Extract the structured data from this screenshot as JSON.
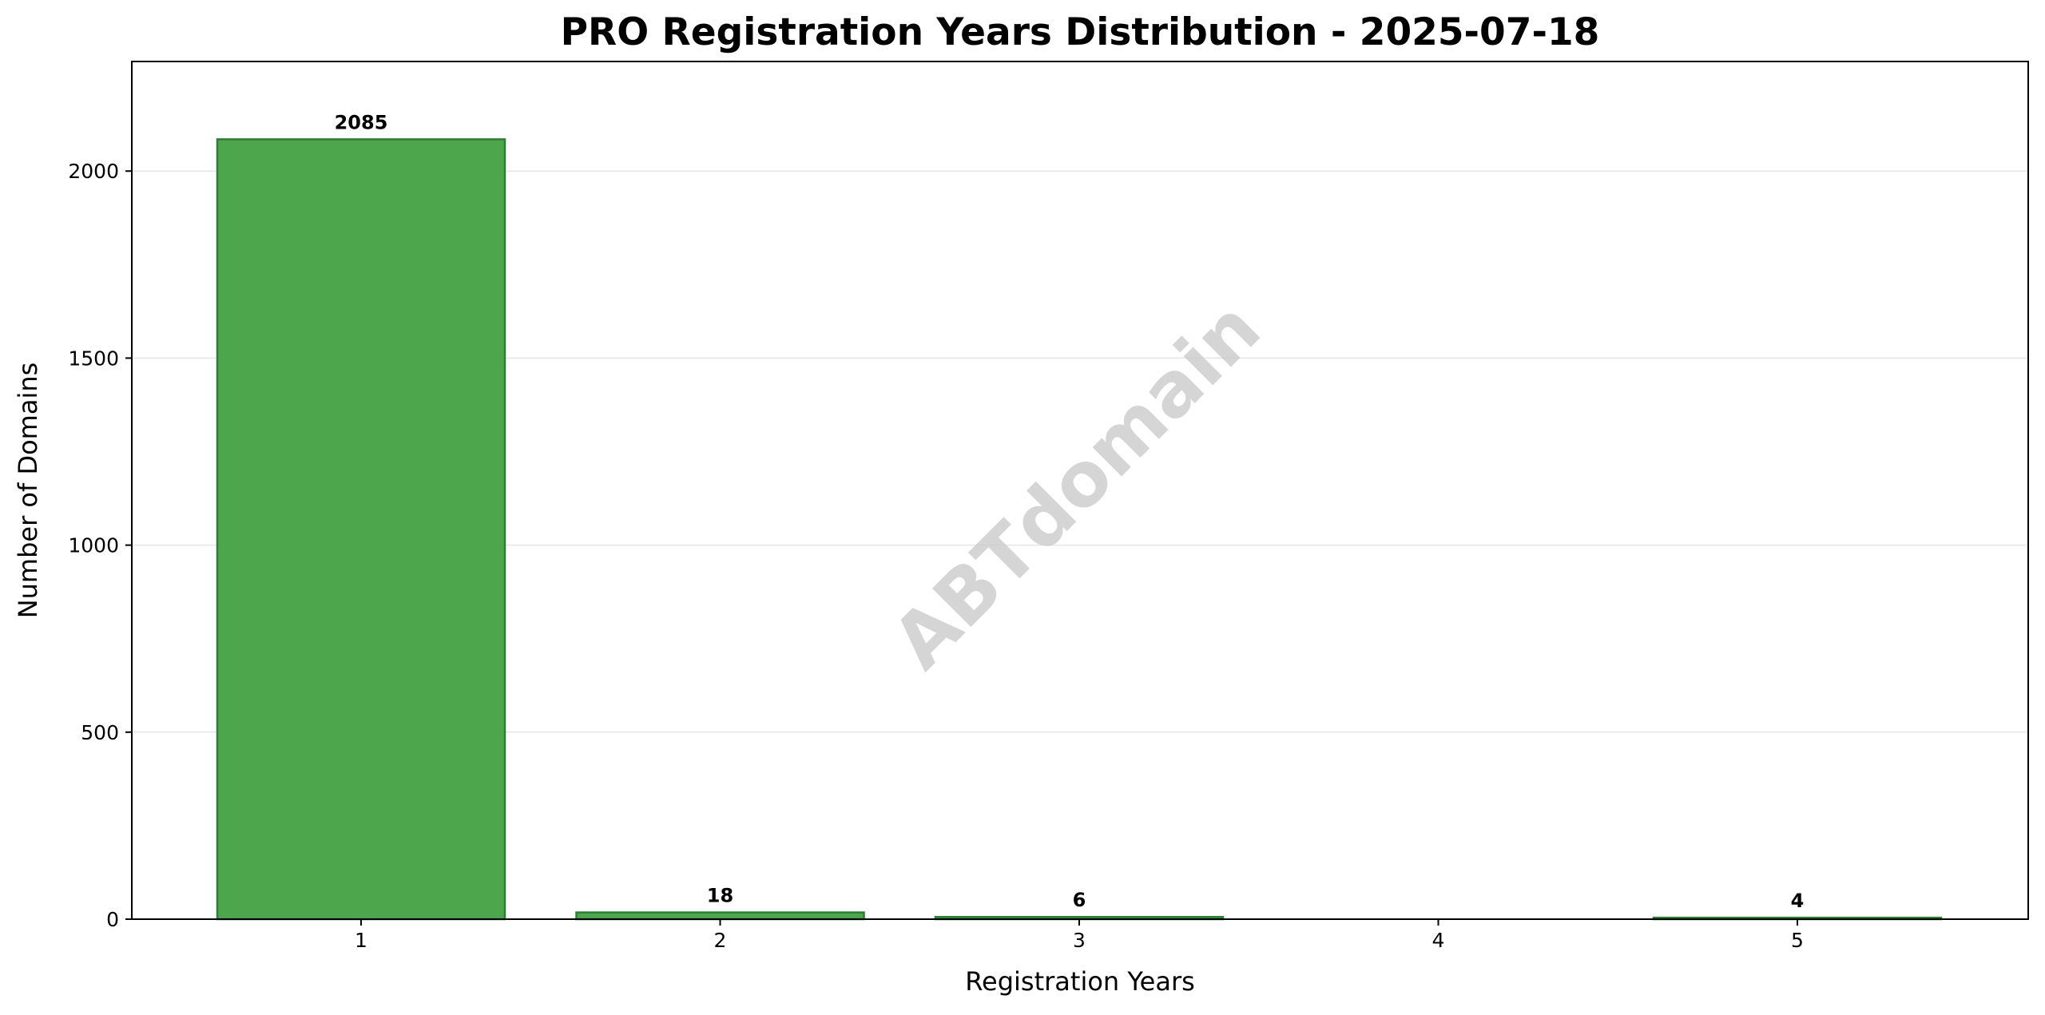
{
  "colors": {
    "bar_fill": "#4ea64c",
    "bar_edge": "#2e7d32",
    "grid": "#e6e6e6"
  },
  "watermark": "ABTdomain",
  "chart_data": {
    "type": "bar",
    "title": "PRO Registration Years Distribution - 2025-07-18",
    "xlabel": "Registration Years",
    "ylabel": "Number of Domains",
    "categories": [
      "1",
      "2",
      "3",
      "4",
      "5"
    ],
    "values": [
      2085,
      18,
      6,
      0,
      4
    ],
    "data_labels": [
      "2085",
      "18",
      "6",
      "",
      "4"
    ],
    "yticks": [
      0,
      500,
      1000,
      1500,
      2000
    ],
    "ylim": [
      0,
      2293
    ],
    "grid": "horizontal",
    "legend": "none"
  }
}
